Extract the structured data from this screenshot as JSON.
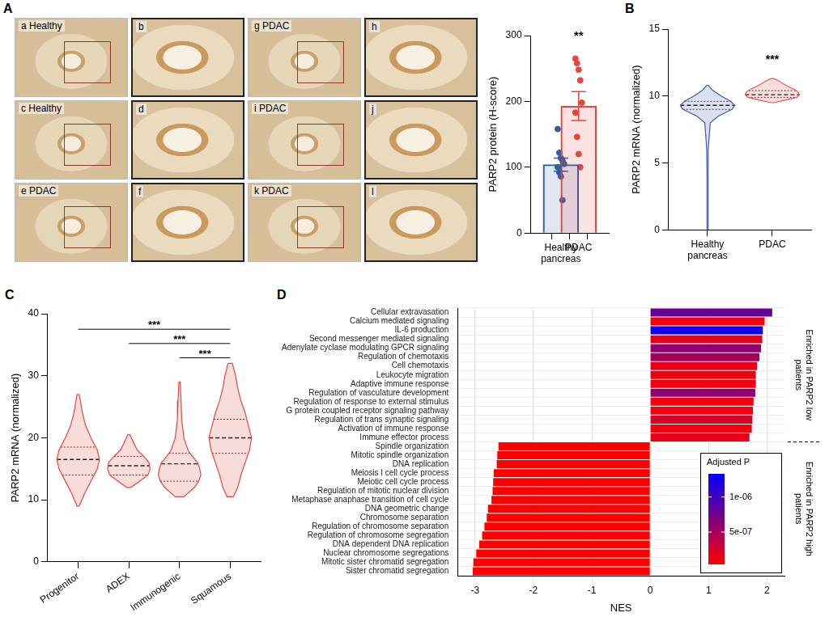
{
  "chart_data": [
    {
      "panel": "A",
      "type": "bar",
      "y_label": "PARP2 protein (H-score)",
      "categories": [
        "Healthy pancreas",
        "PDAC"
      ],
      "values": [
        104,
        193
      ],
      "errors": [
        10,
        22
      ],
      "points": [
        [
          158,
          122,
          114,
          110,
          105,
          100,
          92,
          86,
          50
        ],
        [
          265,
          258,
          248,
          232,
          198,
          183,
          146,
          120,
          100
        ]
      ],
      "colors": [
        "#2f5ea8",
        "#e8453c"
      ],
      "ylim": [
        0,
        300
      ],
      "yticks": [
        0,
        100,
        200,
        300
      ],
      "annotations": [
        {
          "x": "PDAC",
          "y": 290,
          "text": "**"
        }
      ]
    },
    {
      "panel": "B",
      "type": "violin",
      "y_label": "PARP2 mRNA (normalized)",
      "categories": [
        "Healthy pancreas",
        "PDAC"
      ],
      "violins": [
        {
          "y": [
            0,
            2,
            4,
            6,
            8,
            8.5,
            9,
            9.3,
            9.6,
            10,
            10.4,
            10.8
          ],
          "density": [
            0.02,
            0.02,
            0.02,
            0.03,
            0.1,
            0.4,
            0.9,
            1,
            0.85,
            0.5,
            0.2,
            0.03
          ],
          "median": 9.3,
          "q1": 9.0,
          "q3": 9.6
        },
        {
          "y": [
            9.5,
            9.7,
            9.9,
            10.1,
            10.3,
            10.5,
            10.8,
            11.1,
            11.3
          ],
          "density": [
            0.05,
            0.5,
            0.9,
            1,
            0.95,
            0.8,
            0.5,
            0.25,
            0.05
          ],
          "median": 10.1,
          "q1": 9.9,
          "q3": 10.4
        }
      ],
      "colors": [
        "#3b5ca8",
        "#e05a4f"
      ],
      "ylim": [
        0,
        15
      ],
      "yticks": [
        0,
        5,
        10,
        15
      ],
      "annotations": [
        {
          "x": "PDAC",
          "y": 12.3,
          "text": "***"
        }
      ]
    },
    {
      "panel": "C",
      "type": "violin",
      "y_label": "PARP2 mRNA (normalized)",
      "categories": [
        "Progenitor",
        "ADEX",
        "Immunogenic",
        "Squamous"
      ],
      "violins": [
        {
          "y": [
            9,
            11,
            13,
            15,
            16.5,
            18,
            20,
            22,
            24,
            27
          ],
          "density": [
            0.05,
            0.3,
            0.6,
            0.9,
            1,
            0.9,
            0.6,
            0.35,
            0.2,
            0.05
          ],
          "median": 16.5,
          "q1": 14,
          "q3": 18.5
        },
        {
          "y": [
            12,
            13,
            14,
            15,
            16,
            17,
            18,
            19,
            20.5
          ],
          "density": [
            0.1,
            0.5,
            0.9,
            1,
            0.95,
            0.7,
            0.4,
            0.25,
            0.05
          ],
          "median": 15.5,
          "q1": 14,
          "q3": 17
        },
        {
          "y": [
            10.5,
            12,
            13,
            14,
            15,
            16,
            17,
            18,
            20,
            23,
            26,
            29
          ],
          "density": [
            0.2,
            0.7,
            0.9,
            1,
            0.95,
            0.85,
            0.6,
            0.4,
            0.2,
            0.1,
            0.07,
            0.03
          ],
          "median": 15.8,
          "q1": 13,
          "q3": 17.5
        },
        {
          "y": [
            10.5,
            12,
            14,
            16,
            18,
            20,
            22,
            24,
            26,
            28,
            30,
            32
          ],
          "density": [
            0.15,
            0.35,
            0.5,
            0.7,
            0.9,
            1,
            0.85,
            0.7,
            0.5,
            0.35,
            0.25,
            0.1
          ],
          "median": 20,
          "q1": 17.5,
          "q3": 23
        }
      ],
      "color": "#e04a3f",
      "ylim": [
        0,
        40
      ],
      "yticks": [
        0,
        10,
        20,
        30,
        40
      ],
      "comparisons": [
        {
          "from": "Progenitor",
          "to": "Squamous",
          "y": 37.5,
          "text": "***"
        },
        {
          "from": "ADEX",
          "to": "Squamous",
          "y": 35.2,
          "text": "***"
        },
        {
          "from": "Immunogenic",
          "to": "Squamous",
          "y": 32.9,
          "text": "***"
        }
      ]
    },
    {
      "panel": "D",
      "type": "bar",
      "orientation": "horizontal",
      "x_label": "NES",
      "grid": true,
      "categories": [
        "Cellular extravasation",
        "Calcium mediated signaling",
        "IL-6 production",
        "Second messenger mediated signaling",
        "Adenylate cyclase modulating GPCR signaling",
        "Regulation of chemotaxis",
        "Cell chemotaxis",
        "Leukocyte migration",
        "Adaptive immune response",
        "Regulation of vasculature development",
        "Regulation of response to external stimulus",
        "G protein coupled receptor signaling pathway",
        "Regulation of trans synaptic signaling",
        "Activation of immune response",
        "Immune effector process",
        "Spindle organization",
        "Mitotic spindle organization",
        "DNA replication",
        "Meiosis I cell cycle process",
        "Meiotic cell cycle process",
        "Regulation of mitotic nuclear division",
        "Metaphase anaphase transition of cell cycle",
        "DNA geometric change",
        "Chromosome separation",
        "Regulation of chromosome separation",
        "Regulation of chromosome segregation",
        "DNA dependent DNA replication",
        "Nuclear chromosome segregations",
        "Mitotic sister chromatid segregation",
        "Sister chromatid segregation"
      ],
      "values": [
        2.09,
        1.96,
        1.93,
        1.92,
        1.9,
        1.87,
        1.83,
        1.81,
        1.81,
        1.8,
        1.77,
        1.76,
        1.75,
        1.74,
        1.7,
        -2.6,
        -2.62,
        -2.63,
        -2.68,
        -2.69,
        -2.7,
        -2.72,
        -2.78,
        -2.8,
        -2.84,
        -2.88,
        -2.93,
        -2.98,
        -3.03,
        -3.04
      ],
      "adjusted_p": [
        8e-07,
        1e-07,
        1.25e-06,
        1.5e-07,
        6e-07,
        5e-07,
        1.5e-07,
        1.2e-07,
        1.2e-07,
        6e-07,
        1e-07,
        1e-07,
        2.5e-07,
        1e-07,
        1.5e-07,
        5e-08,
        5e-08,
        5e-08,
        5e-08,
        5e-08,
        5e-08,
        5e-08,
        5e-08,
        5e-08,
        5e-08,
        5e-08,
        5e-08,
        5e-08,
        5e-08,
        5e-08
      ],
      "colorbar": {
        "title": "Adjusted P",
        "range": [
          4e-08,
          1.33e-06
        ],
        "ticks": [
          {
            "value": 1e-06,
            "label": "1e-06"
          },
          {
            "value": 5e-07,
            "label": "5e-07"
          }
        ]
      },
      "group_labels": [
        "Enriched in PARP2 low patients",
        "Enriched in PARP2 high patients"
      ],
      "xlim": [
        -3.3,
        2.3
      ],
      "xticks": [
        -3,
        -2,
        -1,
        0,
        1,
        2
      ]
    }
  ],
  "panel_A_images": [
    {
      "letter": "a",
      "label": "Healthy"
    },
    {
      "letter": "b"
    },
    {
      "letter": "g",
      "label": "PDAC"
    },
    {
      "letter": "h"
    },
    {
      "letter": "c",
      "label": "Healthy"
    },
    {
      "letter": "d"
    },
    {
      "letter": "i",
      "label": "PDAC"
    },
    {
      "letter": "j"
    },
    {
      "letter": "e",
      "label": "PDAC"
    },
    {
      "letter": "f"
    },
    {
      "letter": "k",
      "label": "PDAC"
    },
    {
      "letter": "l"
    }
  ]
}
